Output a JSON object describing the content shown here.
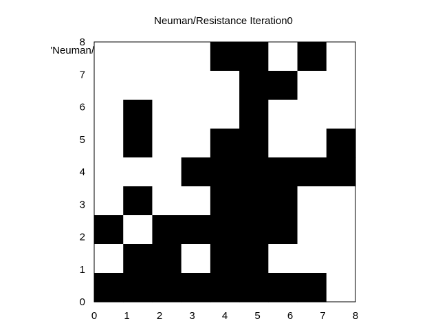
{
  "chart_data": {
    "type": "heatmap",
    "title": "Neuman/Resistance Iteration0",
    "legend_label": "'Neuman/",
    "xlabel": "",
    "ylabel": "",
    "xlim": [
      0,
      8
    ],
    "ylim": [
      0,
      8
    ],
    "x_ticks": [
      "0",
      "1",
      "2",
      "3",
      "4",
      "5",
      "6",
      "7",
      "8"
    ],
    "y_ticks": [
      "0",
      "1",
      "2",
      "3",
      "4",
      "5",
      "6",
      "7",
      "8"
    ],
    "colors": {
      "filled": "#000000",
      "empty": "#ffffff",
      "border": "#000000"
    },
    "cell_rows_top_to_bottom": [
      [
        0,
        0,
        0,
        0,
        1,
        1,
        0,
        1,
        0
      ],
      [
        0,
        0,
        0,
        0,
        0,
        1,
        1,
        0,
        0
      ],
      [
        0,
        1,
        0,
        0,
        0,
        1,
        0,
        0,
        0
      ],
      [
        0,
        1,
        0,
        0,
        1,
        1,
        0,
        0,
        1
      ],
      [
        0,
        0,
        0,
        1,
        1,
        1,
        1,
        1,
        1
      ],
      [
        0,
        1,
        0,
        0,
        1,
        1,
        1,
        0,
        0
      ],
      [
        1,
        0,
        1,
        1,
        1,
        1,
        1,
        0,
        0
      ],
      [
        0,
        1,
        1,
        0,
        1,
        1,
        0,
        0,
        0
      ],
      [
        1,
        1,
        1,
        1,
        1,
        1,
        1,
        1,
        0
      ]
    ]
  }
}
